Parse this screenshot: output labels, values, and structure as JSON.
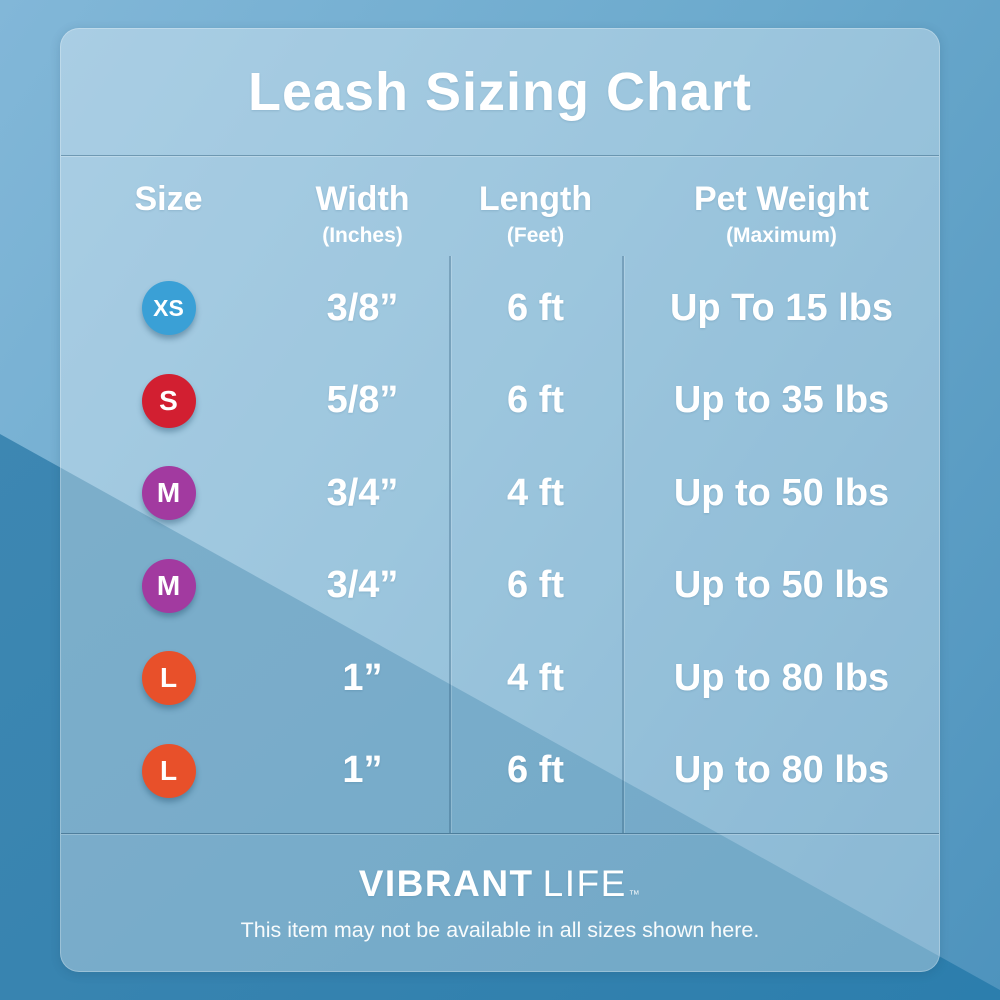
{
  "title": "Leash Sizing Chart",
  "chart_data": {
    "type": "table",
    "title": "Leash Sizing Chart",
    "columns": [
      {
        "label": "Size",
        "sublabel": ""
      },
      {
        "label": "Width",
        "sublabel": "(Inches)"
      },
      {
        "label": "Length",
        "sublabel": "(Feet)"
      },
      {
        "label": "Pet Weight",
        "sublabel": "(Maximum)"
      }
    ],
    "rows": [
      {
        "size": "XS",
        "badge_color": "#3AA0D6",
        "width": "3/8”",
        "length": "6 ft",
        "weight": "Up To 15 lbs"
      },
      {
        "size": "S",
        "badge_color": "#D21F31",
        "width": "5/8”",
        "length": "6 ft",
        "weight": "Up to 35 lbs"
      },
      {
        "size": "M",
        "badge_color": "#A23AA0",
        "width": "3/4”",
        "length": "4 ft",
        "weight": "Up to 50 lbs"
      },
      {
        "size": "M",
        "badge_color": "#A23AA0",
        "width": "3/4”",
        "length": "6 ft",
        "weight": "Up to 50 lbs"
      },
      {
        "size": "L",
        "badge_color": "#E8502A",
        "width": "1”",
        "length": "4 ft",
        "weight": "Up to 80 lbs"
      },
      {
        "size": "L",
        "badge_color": "#E8502A",
        "width": "1”",
        "length": "6 ft",
        "weight": "Up to 80 lbs"
      }
    ]
  },
  "footer": {
    "brand_bold": "VIBRANT",
    "brand_light": "LIFE",
    "trademark": "™",
    "disclaimer": "This item may not be available in all sizes shown here."
  },
  "colors": {
    "background_top": "#82B7D8",
    "background_bottom": "#4E93BD",
    "background_diagonal_dark": "#3584AF",
    "card_tint": "rgba(255,255,255,0.33)",
    "text": "#FFFFFF",
    "badge_xs": "#3AA0D6",
    "badge_s": "#D21F31",
    "badge_m": "#A23AA0",
    "badge_l": "#E8502A"
  }
}
